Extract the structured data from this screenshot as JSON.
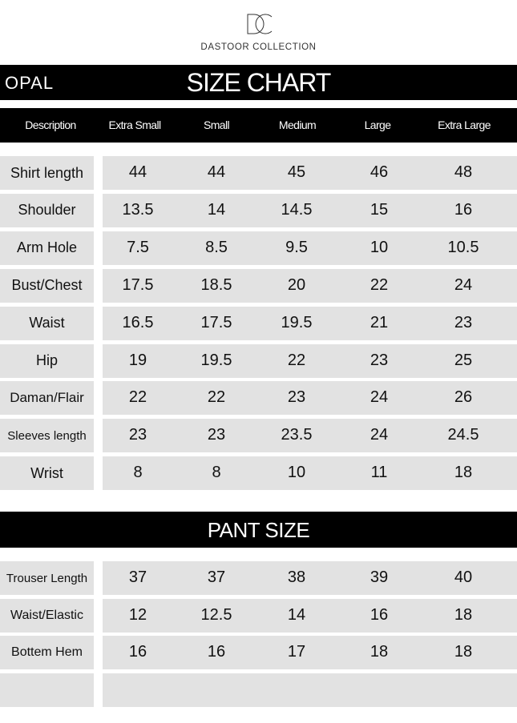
{
  "brand": {
    "logo_text": "DC",
    "name": "DASTOOR COLLECTION"
  },
  "product": "OPAL",
  "title": "SIZE CHART",
  "columns": [
    "Description",
    "Extra Small",
    "Small",
    "Medium",
    "Large",
    "Extra Large"
  ],
  "shirt_rows": [
    {
      "label": "Shirt length",
      "values": [
        "44",
        "44",
        "45",
        "46",
        "48"
      ]
    },
    {
      "label": "Shoulder",
      "values": [
        "13.5",
        "14",
        "14.5",
        "15",
        "16"
      ]
    },
    {
      "label": "Arm Hole",
      "values": [
        "7.5",
        "8.5",
        "9.5",
        "10",
        "10.5"
      ]
    },
    {
      "label": "Bust/Chest",
      "values": [
        "17.5",
        "18.5",
        "20",
        "22",
        "24"
      ]
    },
    {
      "label": "Waist",
      "values": [
        "16.5",
        "17.5",
        "19.5",
        "21",
        "23"
      ]
    },
    {
      "label": "Hip",
      "values": [
        "19",
        "19.5",
        "22",
        "23",
        "25"
      ]
    },
    {
      "label": "Daman/Flair",
      "values": [
        "22",
        "22",
        "23",
        "24",
        "26"
      ]
    },
    {
      "label": "Sleeves length",
      "values": [
        "23",
        "23",
        "23.5",
        "24",
        "24.5"
      ]
    },
    {
      "label": "Wrist",
      "values": [
        "8",
        "8",
        "10",
        "11",
        "18"
      ]
    }
  ],
  "pant_title": "PANT SIZE",
  "pant_rows": [
    {
      "label": "Trouser Length",
      "values": [
        "37",
        "37",
        "38",
        "39",
        "40"
      ]
    },
    {
      "label": "Waist/Elastic",
      "values": [
        "12",
        "12.5",
        "14",
        "16",
        "18"
      ]
    },
    {
      "label": "Bottem Hem",
      "values": [
        "16",
        "16",
        "17",
        "18",
        "18"
      ]
    },
    {
      "label": "",
      "values": [
        "",
        "",
        "",
        "",
        ""
      ]
    }
  ]
}
